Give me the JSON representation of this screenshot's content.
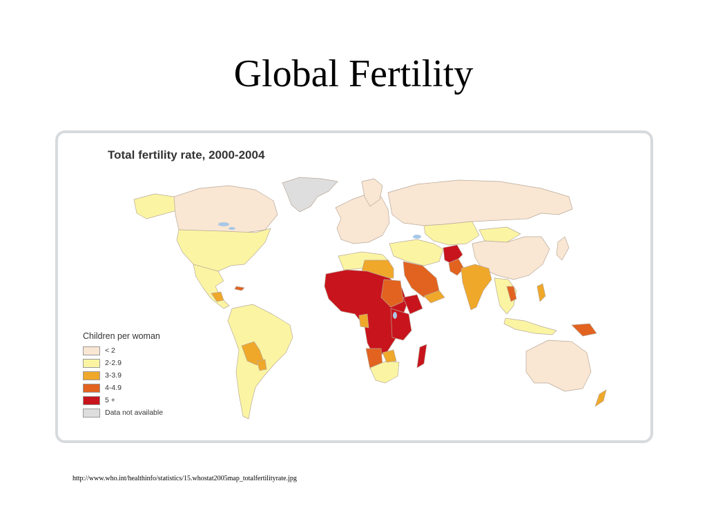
{
  "slide": {
    "title": "Global Fertility",
    "source_url": "http://www.who.int/healthinfo/statistics/15.whostat2005map_totalfertilityrate.jpg"
  },
  "map": {
    "title": "Total fertility rate, 2000-2004",
    "legend": {
      "title": "Children per woman",
      "items": [
        {
          "label": "< 2",
          "color": "#f9e6d3"
        },
        {
          "label": "2-2.9",
          "color": "#fbf5a3"
        },
        {
          "label": "3-3.9",
          "color": "#f0a82a"
        },
        {
          "label": "4-4.9",
          "color": "#e2621f"
        },
        {
          "label": "5 +",
          "color": "#c8141c"
        },
        {
          "label": "Data not available",
          "color": "#dedede"
        }
      ]
    },
    "colors": {
      "ocean": "#ffffff",
      "border": "#b9a999",
      "water_bodies": "#a9c7e6"
    }
  }
}
